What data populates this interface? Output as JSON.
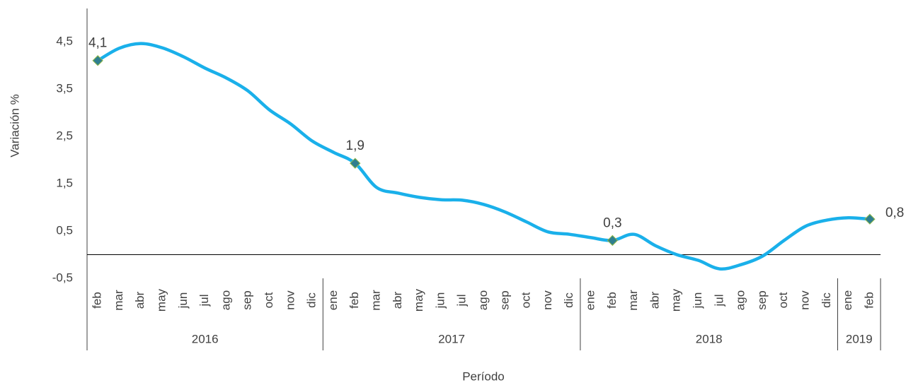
{
  "chart_data": {
    "type": "line",
    "y_label": "Variación %",
    "x_label": "Período",
    "categories": [
      "feb",
      "mar",
      "abr",
      "may",
      "jun",
      "jul",
      "ago",
      "sep",
      "oct",
      "nov",
      "dic",
      "ene",
      "feb",
      "mar",
      "abr",
      "may",
      "jun",
      "jul",
      "ago",
      "sep",
      "oct",
      "nov",
      "dic",
      "ene",
      "feb",
      "mar",
      "abr",
      "may",
      "jun",
      "jul",
      "ago",
      "sep",
      "oct",
      "nov",
      "dic",
      "ene",
      "feb"
    ],
    "category_groups": [
      {
        "label": "2016",
        "span": 11
      },
      {
        "label": "2017",
        "span": 12
      },
      {
        "label": "2018",
        "span": 12
      },
      {
        "label": "2019",
        "span": 2
      }
    ],
    "series": [
      {
        "name": "Variación %",
        "color": "#1ab0ea",
        "marker_color": "#2f7f8f",
        "values": [
          4.1,
          4.36,
          4.46,
          4.37,
          4.18,
          3.94,
          3.73,
          3.46,
          3.06,
          2.76,
          2.4,
          2.16,
          1.93,
          1.42,
          1.3,
          1.21,
          1.16,
          1.15,
          1.06,
          0.9,
          0.69,
          0.48,
          0.43,
          0.36,
          0.3,
          0.43,
          0.19,
          0.0,
          -0.12,
          -0.3,
          -0.21,
          -0.03,
          0.3,
          0.6,
          0.73,
          0.78,
          0.75
        ],
        "value_labels": [
          "4,1",
          null,
          null,
          null,
          null,
          null,
          null,
          null,
          null,
          null,
          null,
          null,
          "1,9",
          null,
          null,
          null,
          null,
          null,
          null,
          null,
          null,
          null,
          null,
          null,
          "0,3",
          null,
          null,
          null,
          null,
          null,
          null,
          null,
          null,
          null,
          null,
          null,
          "0,8"
        ]
      }
    ],
    "ylim": [
      -0.5,
      5.2
    ],
    "yticks": [
      {
        "value": -0.5,
        "label": "-0,5"
      },
      {
        "value": 0.5,
        "label": "0,5"
      },
      {
        "value": 1.5,
        "label": "1,5"
      },
      {
        "value": 2.5,
        "label": "2,5"
      },
      {
        "value": 3.5,
        "label": "3,5"
      },
      {
        "value": 4.5,
        "label": "4,5"
      }
    ],
    "grid": false
  }
}
